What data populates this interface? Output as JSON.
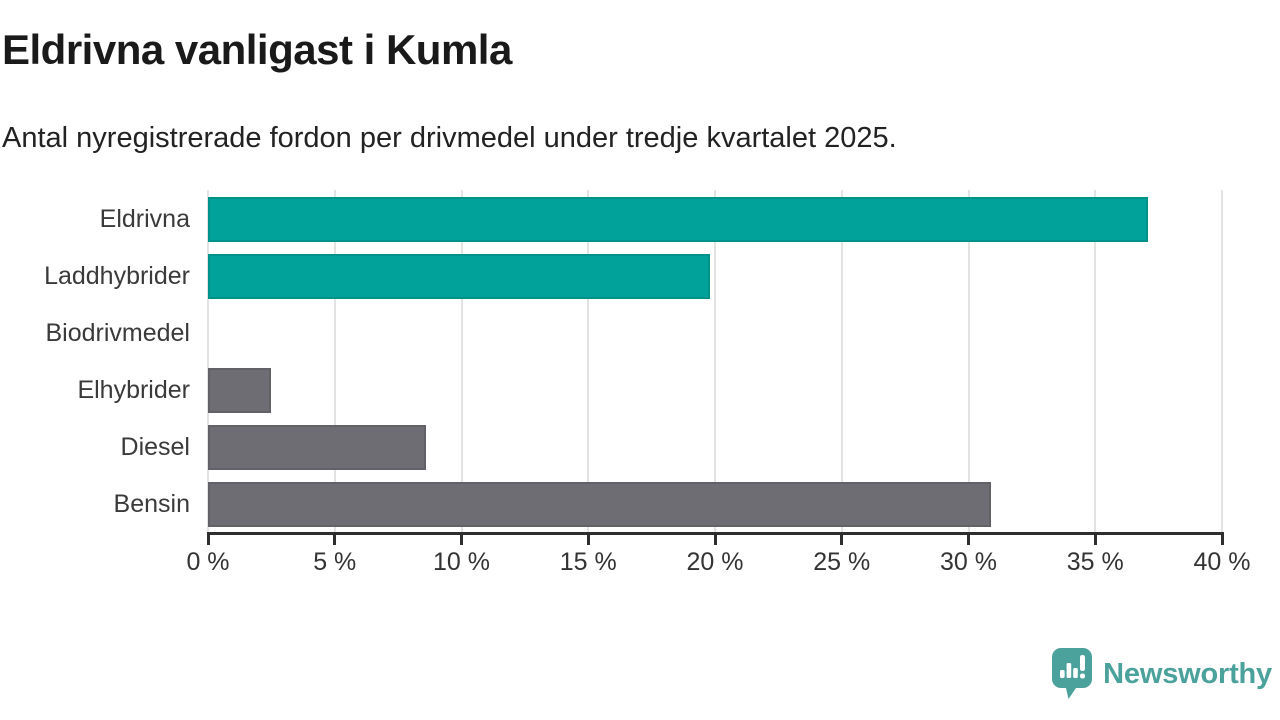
{
  "header": {
    "title": "Eldrivna vanligast i Kumla",
    "subtitle": "Antal nyregistrerade fordon per drivmedel under tredje kvartalet 2025."
  },
  "chart_data": {
    "type": "bar",
    "orientation": "horizontal",
    "title": "Eldrivna vanligast i Kumla",
    "subtitle": "Antal nyregistrerade fordon per drivmedel under tredje kvartalet 2025.",
    "categories": [
      "Eldrivna",
      "Laddhybrider",
      "Biodrivmedel",
      "Elhybrider",
      "Diesel",
      "Bensin"
    ],
    "values": [
      37.1,
      19.8,
      0,
      2.5,
      8.6,
      30.9
    ],
    "unit": "%",
    "bar_colors": [
      "#00a29a",
      "#00a29a",
      "#6d6d73",
      "#6d6d73",
      "#6d6d73",
      "#6d6d73"
    ],
    "xlabel": "",
    "ylabel": "",
    "xlim": [
      0,
      40
    ],
    "x_ticks": [
      0,
      5,
      10,
      15,
      20,
      25,
      30,
      35,
      40
    ],
    "x_tick_labels": [
      "0 %",
      "5 %",
      "10 %",
      "15 %",
      "20 %",
      "25 %",
      "30 %",
      "35 %",
      "40 %"
    ],
    "grid": "vertical-gridlines-on",
    "legend": "none"
  },
  "footer": {
    "brand": "Newsworthy",
    "brand_color": "#4ba19b",
    "logo_icon": "speech-bubble-bar-chart-icon"
  },
  "colors": {
    "accent_teal": "#00a29a",
    "neutral_gray": "#6d6d73",
    "axis": "#2e2e2e",
    "gridline": "#e3e3e3",
    "title_text": "#1a1a1a"
  }
}
